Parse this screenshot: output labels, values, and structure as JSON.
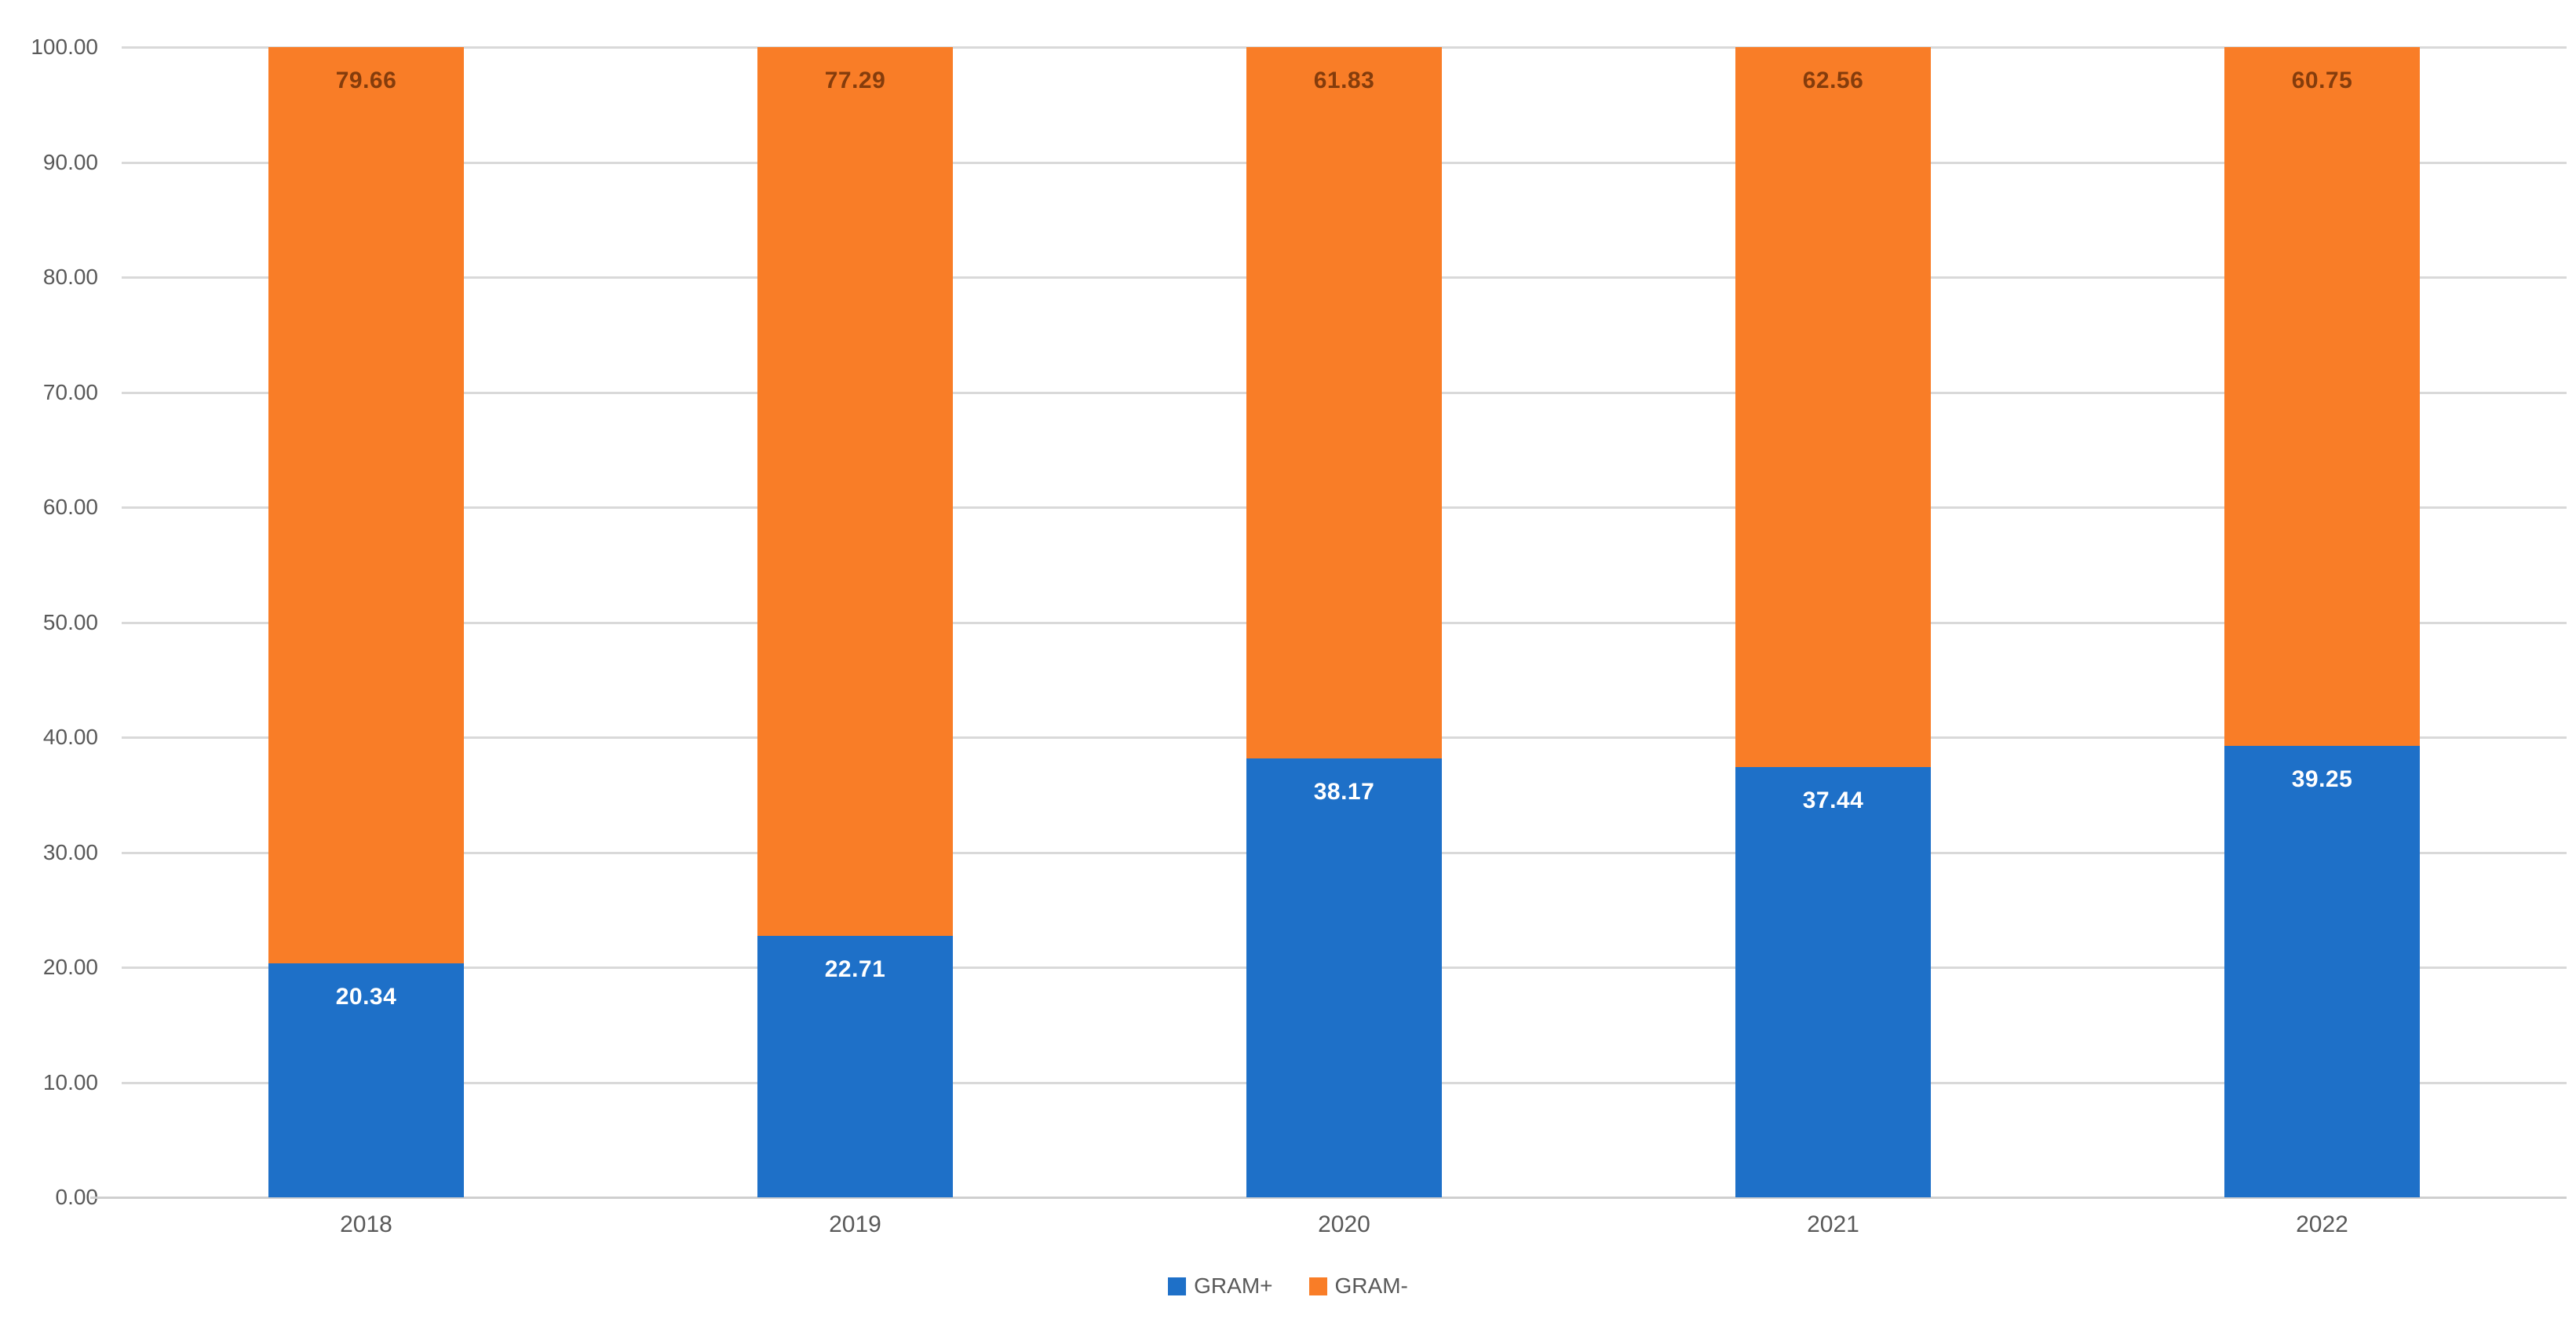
{
  "chart_data": {
    "type": "bar",
    "variant": "stacked-100",
    "orientation": "vertical",
    "title": "",
    "xlabel": "",
    "ylabel": "",
    "categories": [
      "2018",
      "2019",
      "2020",
      "2021",
      "2022"
    ],
    "series": [
      {
        "name": "GRAM+",
        "color": "#1e70c8",
        "label_color": "#ffffff",
        "values": [
          20.34,
          22.71,
          38.17,
          37.44,
          39.25
        ]
      },
      {
        "name": "GRAM-",
        "color": "#f97d27",
        "label_color": "#843c0c",
        "values": [
          79.66,
          77.29,
          61.83,
          62.56,
          60.75
        ]
      }
    ],
    "data_labels": {
      "GRAM+": [
        "20.34",
        "22.71",
        "38.17",
        "37.44",
        "39.25"
      ],
      "GRAM-": [
        "79.66",
        "77.29",
        "61.83",
        "62.56",
        "60.75"
      ]
    },
    "y_axis": {
      "ticks": [
        "100.00",
        "90.00",
        "80.00",
        "70.00",
        "60.00",
        "50.00",
        "40.00",
        "30.00",
        "20.00",
        "10.00",
        "0.00"
      ],
      "min": 0,
      "max": 100,
      "step": 10
    },
    "grid": true,
    "grid_color": "#d9d9d9",
    "axis_text_color": "#595959",
    "legend_position": "bottom",
    "legend": [
      "GRAM+",
      "GRAM-"
    ]
  }
}
